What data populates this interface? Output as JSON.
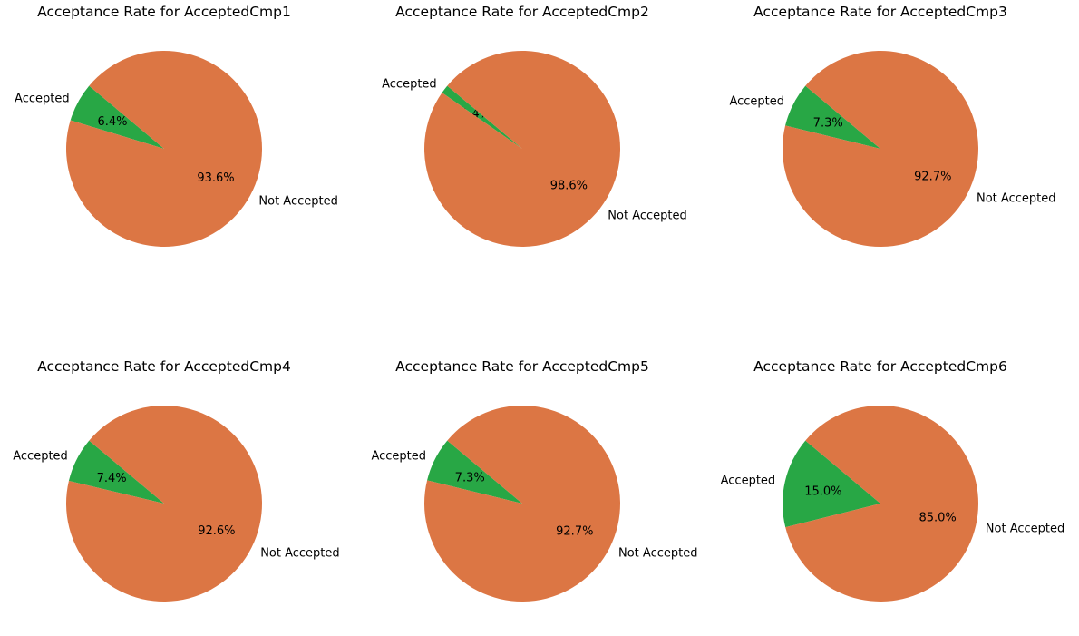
{
  "colors": {
    "accepted": "#28a745",
    "not_accepted": "#dc7644"
  },
  "chart_data": [
    {
      "type": "pie",
      "title": "Acceptance Rate for AcceptedCmp1",
      "labels": [
        "Accepted",
        "Not Accepted"
      ],
      "values": [
        6.4,
        93.6
      ],
      "autopct": [
        "6.4%",
        "93.6%"
      ]
    },
    {
      "type": "pie",
      "title": "Acceptance Rate for AcceptedCmp2",
      "labels": [
        "Accepted",
        "Not Accepted"
      ],
      "values": [
        1.4,
        98.6
      ],
      "autopct": [
        "1.4%",
        "98.6%"
      ]
    },
    {
      "type": "pie",
      "title": "Acceptance Rate for AcceptedCmp3",
      "labels": [
        "Accepted",
        "Not Accepted"
      ],
      "values": [
        7.3,
        92.7
      ],
      "autopct": [
        "7.3%",
        "92.7%"
      ]
    },
    {
      "type": "pie",
      "title": "Acceptance Rate for AcceptedCmp4",
      "labels": [
        "Accepted",
        "Not Accepted"
      ],
      "values": [
        7.4,
        92.6
      ],
      "autopct": [
        "7.4%",
        "92.6%"
      ]
    },
    {
      "type": "pie",
      "title": "Acceptance Rate for AcceptedCmp5",
      "labels": [
        "Accepted",
        "Not Accepted"
      ],
      "values": [
        7.3,
        92.7
      ],
      "autopct": [
        "7.3%",
        "92.7%"
      ]
    },
    {
      "type": "pie",
      "title": "Acceptance Rate for AcceptedCmp6",
      "labels": [
        "Accepted",
        "Not Accepted"
      ],
      "values": [
        15.0,
        85.0
      ],
      "autopct": [
        "15.0%",
        "85.0%"
      ]
    }
  ]
}
